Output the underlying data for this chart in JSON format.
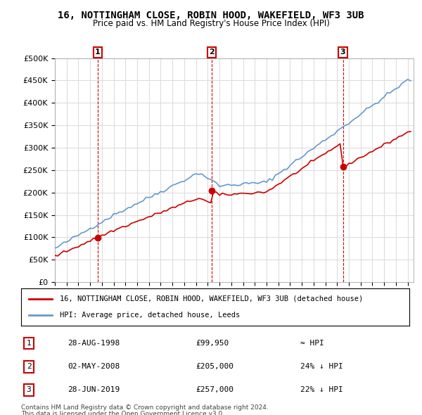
{
  "title": "16, NOTTINGHAM CLOSE, ROBIN HOOD, WAKEFIELD, WF3 3UB",
  "subtitle": "Price paid vs. HM Land Registry's House Price Index (HPI)",
  "property_label": "16, NOTTINGHAM CLOSE, ROBIN HOOD, WAKEFIELD, WF3 3UB (detached house)",
  "hpi_label": "HPI: Average price, detached house, Leeds",
  "sales": [
    {
      "num": 1,
      "date": "28-AUG-1998",
      "price": 99950,
      "year": 1998.65,
      "note": "≈ HPI"
    },
    {
      "num": 2,
      "date": "02-MAY-2008",
      "price": 205000,
      "year": 2008.33,
      "note": "24% ↓ HPI"
    },
    {
      "num": 3,
      "date": "28-JUN-2019",
      "price": 257000,
      "year": 2019.49,
      "note": "22% ↓ HPI"
    }
  ],
  "footer1": "Contains HM Land Registry data © Crown copyright and database right 2024.",
  "footer2": "This data is licensed under the Open Government Licence v3.0.",
  "property_color": "#cc0000",
  "hpi_color": "#6699cc",
  "background_color": "#ffffff",
  "grid_color": "#dddddd",
  "ylim": [
    0,
    500000
  ],
  "yticks": [
    0,
    50000,
    100000,
    150000,
    200000,
    250000,
    300000,
    350000,
    400000,
    450000,
    500000
  ],
  "xlim_start": 1995.0,
  "xlim_end": 2025.5
}
